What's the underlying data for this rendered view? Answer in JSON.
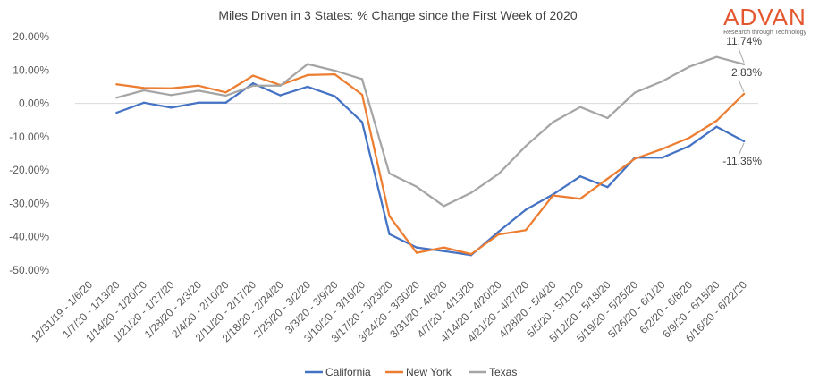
{
  "chart_data": {
    "type": "line",
    "title": "Miles Driven in 3 States: % Change since the First Week of 2020",
    "xlabel": "",
    "ylabel": "",
    "ylim": [
      -50,
      20
    ],
    "yticks": [
      "20.00%",
      "10.00%",
      "0.00%",
      "-10.00%",
      "-20.00%",
      "-30.00%",
      "-40.00%",
      "-50.00%"
    ],
    "categories": [
      "12/31/19 - 1/6/20",
      "1/7/20 - 1/13/20",
      "1/14/20 - 1/20/20",
      "1/21/20 - 1/27/20",
      "1/28/20 - 2/3/20",
      "2/4/20 - 2/10/20",
      "2/11/20 - 2/17/20",
      "2/18/20 - 2/24/20",
      "2/25/20 - 3/2/20",
      "3/3/20 - 3/9/20",
      "3/10/20 - 3/16/20",
      "3/17/20 - 3/23/20",
      "3/24/20 - 3/30/20",
      "3/31/20 - 4/6/20",
      "4/7/20 - 4/13/20",
      "4/14/20 - 4/20/20",
      "4/21/20 - 4/27/20",
      "4/28/20 - 5/4/20",
      "5/5/20 - 5/11/20",
      "5/12/20 - 5/18/20",
      "5/19/20 - 5/25/20",
      "5/26/20 - 6/1/20",
      "6/2/20 - 6/8/20",
      "6/9/20 - 6/15/20",
      "6/16/20 - 6/22/20"
    ],
    "series": [
      {
        "name": "California",
        "color": "#4472C4",
        "values": [
          null,
          -2.8,
          0.2,
          -1.3,
          0.2,
          0.2,
          6.0,
          2.4,
          5.0,
          2.1,
          -5.6,
          -39.2,
          -43.2,
          -44.3,
          -45.5,
          -38.5,
          -31.9,
          -27.3,
          -21.9,
          -25.1,
          -16.3,
          -16.3,
          -12.8,
          -7.0,
          -11.36
        ]
      },
      {
        "name": "New York",
        "color": "#ED7D31",
        "values": [
          null,
          5.7,
          4.6,
          4.5,
          5.3,
          3.3,
          8.3,
          5.5,
          8.5,
          8.7,
          2.6,
          -33.8,
          -44.8,
          -43.2,
          -45.2,
          -39.3,
          -38.0,
          -27.6,
          -28.6,
          -22.6,
          -16.6,
          -13.7,
          -10.3,
          -5.2,
          2.83
        ]
      },
      {
        "name": "Texas",
        "color": "#A5A5A5",
        "values": [
          null,
          1.7,
          3.9,
          2.5,
          3.8,
          2.3,
          5.3,
          5.3,
          11.8,
          9.8,
          7.3,
          -21.0,
          -25.0,
          -30.8,
          -26.8,
          -21.2,
          -12.8,
          -5.6,
          -1.1,
          -4.4,
          3.2,
          6.6,
          11.0,
          13.9,
          11.74
        ]
      }
    ],
    "end_labels": [
      {
        "series": "Texas",
        "text": "11.74%"
      },
      {
        "series": "New York",
        "text": "2.83%"
      },
      {
        "series": "California",
        "text": "-11.36%"
      }
    ],
    "grid": false,
    "legend_position": "bottom"
  },
  "branding": {
    "logo_word": "ADVAN",
    "logo_tagline": "Research through Technology",
    "logo_color": "#E4572E"
  }
}
